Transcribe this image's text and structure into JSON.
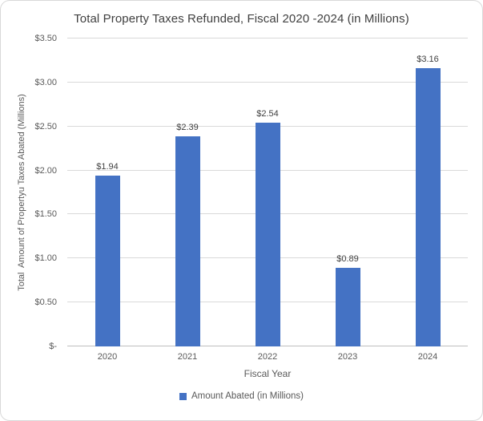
{
  "chart_data": {
    "type": "bar",
    "title": "Total Property Taxes Refunded, Fiscal 2020 -2024 (in Millions)",
    "categories": [
      "2020",
      "2021",
      "2022",
      "2023",
      "2024"
    ],
    "series": [
      {
        "name": "Amount Abated (in Millions)",
        "values": [
          1.94,
          2.39,
          2.54,
          0.89,
          3.16
        ]
      }
    ],
    "data_labels": [
      "$1.94",
      "$2.39",
      "$2.54",
      "$0.89",
      "$3.16"
    ],
    "xlabel": "Fiscal Year",
    "ylabel": "Total  Amount of Propertyu Taxes Abated (Millions)",
    "ylim": [
      0,
      3.5
    ],
    "ytick_step": 0.5,
    "yticks": [
      "$-",
      "$0.50",
      "$1.00",
      "$1.50",
      "$2.00",
      "$2.50",
      "$3.00",
      "$3.50"
    ],
    "grid": true,
    "legend": {
      "position": "bottom",
      "entries": [
        {
          "label": "Amount Abated (in Millions)",
          "color": "#4472C4"
        }
      ]
    }
  },
  "colors": {
    "bar": "#4472C4",
    "gridline": "#D9D9D9",
    "axis_line": "#BFBFBF",
    "title_text": "#404040",
    "axis_text": "#595959",
    "data_label_text": "#404040",
    "frame_border": "#D9D9D9",
    "background": "#FFFFFF"
  }
}
